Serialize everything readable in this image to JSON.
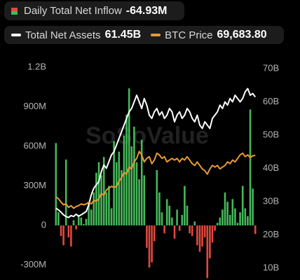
{
  "chart_data": {
    "type": "bar",
    "watermark": "SoSoValue",
    "ylim": [
      -414,
      1243
    ],
    "yticks": [
      {
        "value": 1200,
        "label": "1.2B"
      },
      {
        "value": 900,
        "label": "900M"
      },
      {
        "value": 600,
        "label": "600M"
      },
      {
        "value": 300,
        "label": "300M"
      },
      0,
      {
        "value": -300,
        "label": "-300M"
      }
    ],
    "y2lim": [
      6.4,
      72.1
    ],
    "y2ticks": [
      {
        "value": 70,
        "label": "70B"
      },
      {
        "value": 60,
        "label": "60B"
      },
      {
        "value": 50,
        "label": "50B"
      },
      {
        "value": 40,
        "label": "40B"
      },
      {
        "value": 30,
        "label": "30B"
      },
      {
        "value": 20,
        "label": "20B"
      },
      {
        "value": 10,
        "label": "10B"
      }
    ],
    "y3lim": [
      -1500,
      123300
    ],
    "grid": false,
    "series": [
      {
        "name": "Daily Total Net Inflow",
        "latest": "-64.93M",
        "color": "#45b85a",
        "negative_color": "#e2483d",
        "values": [
          625,
          100,
          -80,
          -150,
          500,
          -90,
          -160,
          40,
          -30,
          80,
          60,
          10,
          50,
          180,
          120,
          250,
          400,
          480,
          380,
          520,
          250,
          300,
          130,
          640,
          480,
          560,
          420,
          680,
          840,
          1040,
          600,
          750,
          480,
          350,
          650,
          380,
          -170,
          -320,
          -280,
          -120,
          420,
          250,
          100,
          -60,
          200,
          150,
          60,
          -100,
          120,
          -40,
          80,
          300,
          150,
          -60,
          -80,
          30,
          -150,
          -200,
          -160,
          -90,
          -400,
          -250,
          -130,
          -40,
          20,
          60,
          120,
          250,
          180,
          80,
          200,
          130,
          20,
          100,
          300,
          130,
          70,
          880,
          280,
          -64.93
        ]
      },
      {
        "name": "Total Net Assets",
        "latest": "61.45B",
        "color": "#ffffff",
        "axis": "y2",
        "values": [
          28,
          27.5,
          26.8,
          26,
          25.5,
          25.2,
          25.8,
          25.5,
          26.2,
          25.6,
          26,
          26.5,
          27,
          29,
          32,
          34,
          35,
          36,
          39,
          41,
          40,
          42,
          44,
          45,
          47,
          49,
          51,
          53,
          55,
          57,
          58,
          60,
          62,
          60,
          58,
          61,
          59,
          56,
          55,
          57,
          58,
          56,
          57,
          55,
          56,
          58,
          57,
          54,
          56,
          57,
          55,
          56,
          58,
          57,
          55,
          54,
          56,
          53,
          52,
          54,
          53,
          52,
          55,
          56,
          57,
          59,
          58,
          60,
          59,
          61,
          60,
          62,
          61,
          60,
          61,
          63,
          64,
          62,
          62.5,
          61.45
        ]
      },
      {
        "name": "BTC Price",
        "latest": "69,683.80",
        "color": "#e89a34",
        "axis": "y3",
        "values": [
          46000,
          45000,
          43000,
          41500,
          42000,
          40000,
          41000,
          39500,
          40500,
          41000,
          42000,
          41500,
          42000,
          43000,
          42000,
          44000,
          43500,
          45000,
          48000,
          47000,
          50000,
          51000,
          52000,
          51500,
          52000,
          55000,
          57000,
          60000,
          59000,
          63000,
          62000,
          66000,
          68000,
          72000,
          70000,
          66000,
          68000,
          69000,
          65000,
          67000,
          71000,
          70000,
          68000,
          69000,
          66000,
          67000,
          68000,
          67000,
          68000,
          66000,
          68000,
          67000,
          69000,
          67000,
          65000,
          64000,
          66000,
          64000,
          62000,
          61000,
          59000,
          62000,
          64000,
          63000,
          64000,
          62000,
          63000,
          64000,
          66000,
          65000,
          67000,
          66000,
          68000,
          70000,
          71000,
          69000,
          70000,
          68500,
          69500,
          69683.8
        ]
      }
    ]
  }
}
